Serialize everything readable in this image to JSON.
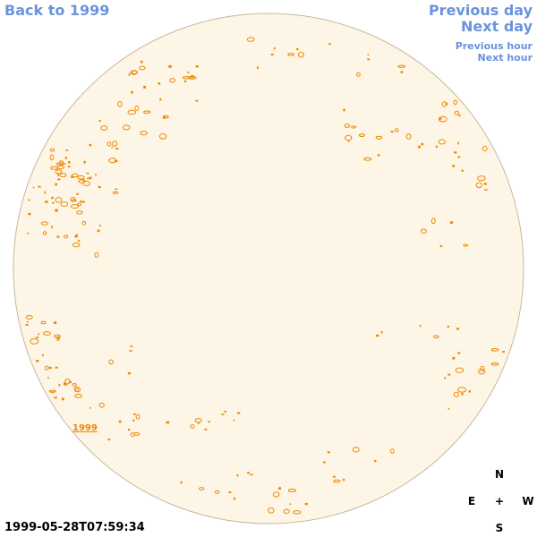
{
  "nav": {
    "back_label": "Back to 1999",
    "prev_day_label": "Previous day",
    "next_day_label": "Next day",
    "prev_hour_label": "Previous hour",
    "next_hour_label": "Next hour"
  },
  "timestamp": "1999-05-28T07:59:34",
  "year_label": "1999",
  "compass": {
    "north": "N",
    "south": "S",
    "east": "E",
    "west": "W",
    "center": "+"
  },
  "colors": {
    "disk_fill": "#fdf5e6",
    "disk_border": "#c8b8a0",
    "contour": "#ee8800",
    "link": "#6a93dc"
  }
}
